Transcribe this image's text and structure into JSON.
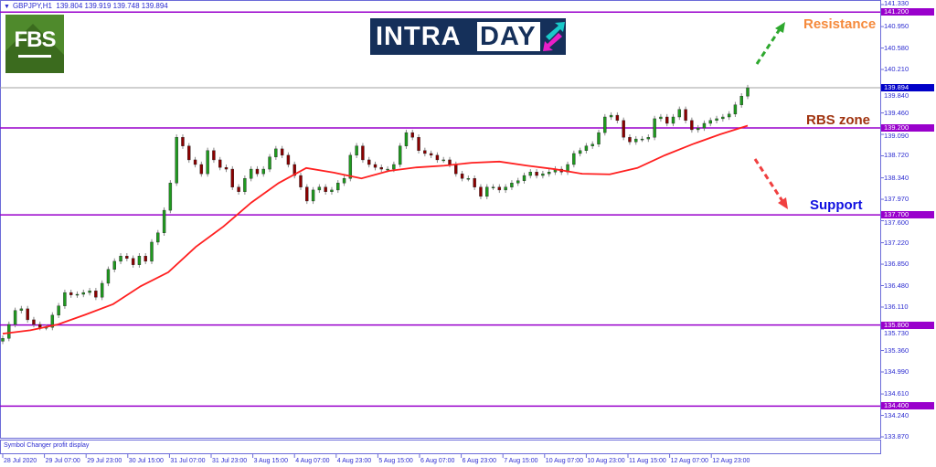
{
  "header": {
    "symbol": "GBPJPY,H1",
    "ohlc": "139.804 139.919 139.748 139.894"
  },
  "logos": {
    "broker": "FBS",
    "brand_part1": "INTRA",
    "brand_part2": "DAY"
  },
  "annotations": {
    "resistance": {
      "text": "Resistance",
      "color": "#f58a3c"
    },
    "rbs": {
      "text": "RBS zone",
      "color": "#a0330f"
    },
    "support": {
      "text": "Support",
      "color": "#1010e0"
    },
    "arrow_up_color": "#2ea82e",
    "arrow_down_color": "#f04040"
  },
  "indicator_panel": {
    "label": "Symbol Changer profit display"
  },
  "colors": {
    "bull": "#1f9a1f",
    "bear": "#8b0000",
    "ma": "#ff2020",
    "level": "#9900cc",
    "current": "#0000c8",
    "axis": "#6b6bd8"
  },
  "chart_data": {
    "type": "candlestick",
    "symbol": "GBPJPY",
    "timeframe": "H1",
    "ylim": [
      133.87,
      141.33
    ],
    "x_ticks": [
      "28 Jul 2020",
      "29 Jul 07:00",
      "29 Jul 23:00",
      "30 Jul 15:00",
      "31 Jul 07:00",
      "31 Jul 23:00",
      "3 Aug 15:00",
      "4 Aug 07:00",
      "4 Aug 23:00",
      "5 Aug 15:00",
      "6 Aug 07:00",
      "6 Aug 23:00",
      "7 Aug 15:00",
      "10 Aug 07:00",
      "10 Aug 23:00",
      "11 Aug 15:00",
      "12 Aug 07:00",
      "12 Aug 23:00"
    ],
    "y_ticks": [
      "141.330",
      "140.950",
      "140.580",
      "140.210",
      "139.840",
      "139.460",
      "139.090",
      "138.720",
      "138.340",
      "137.970",
      "137.600",
      "137.220",
      "136.850",
      "136.480",
      "136.110",
      "135.730",
      "135.360",
      "134.990",
      "134.610",
      "134.240",
      "133.870"
    ],
    "levels": [
      "141.200",
      "139.200",
      "137.700",
      "135.800",
      "134.400"
    ],
    "current_price": "139.894",
    "closes": [
      135.57,
      135.81,
      136.05,
      136.08,
      135.89,
      135.81,
      135.76,
      135.76,
      135.97,
      136.13,
      136.36,
      136.32,
      136.33,
      136.36,
      136.39,
      136.28,
      136.52,
      136.76,
      136.9,
      136.99,
      136.95,
      136.84,
      136.99,
      136.9,
      137.23,
      137.39,
      137.78,
      138.25,
      139.04,
      138.89,
      138.65,
      138.57,
      138.41,
      138.81,
      138.65,
      138.52,
      138.49,
      138.18,
      138.1,
      138.33,
      138.49,
      138.41,
      138.49,
      138.7,
      138.84,
      138.73,
      138.57,
      138.38,
      138.18,
      137.94,
      138.13,
      138.18,
      138.1,
      138.13,
      138.25,
      138.33,
      138.73,
      138.89,
      138.65,
      138.57,
      138.52,
      138.49,
      138.49,
      138.57,
      138.89,
      139.12,
      139.04,
      138.81,
      138.76,
      138.73,
      138.65,
      138.65,
      138.57,
      138.41,
      138.33,
      138.33,
      138.18,
      138.02,
      138.18,
      138.18,
      138.13,
      138.18,
      138.25,
      138.29,
      138.38,
      138.44,
      138.38,
      138.41,
      138.44,
      138.49,
      138.44,
      138.57,
      138.76,
      138.81,
      138.89,
      138.92,
      139.12,
      139.39,
      139.42,
      139.33,
      139.04,
      138.96,
      139.01,
      139.01,
      139.04,
      139.36,
      139.39,
      139.28,
      139.39,
      139.52,
      139.33,
      139.17,
      139.2,
      139.28,
      139.33,
      139.36,
      139.39,
      139.44,
      139.6,
      139.75,
      139.894
    ],
    "series": [
      {
        "type": "moving-average",
        "values": [
          135.65,
          135.71,
          135.81,
          135.98,
          136.16,
          136.47,
          136.71,
          137.15,
          137.5,
          137.91,
          138.25,
          138.51,
          138.43,
          138.33,
          138.46,
          138.52,
          138.55,
          138.6,
          138.62,
          138.55,
          138.49,
          138.41,
          138.4,
          138.51,
          138.73,
          138.92,
          139.09,
          139.24
        ]
      }
    ],
    "grid": false
  }
}
